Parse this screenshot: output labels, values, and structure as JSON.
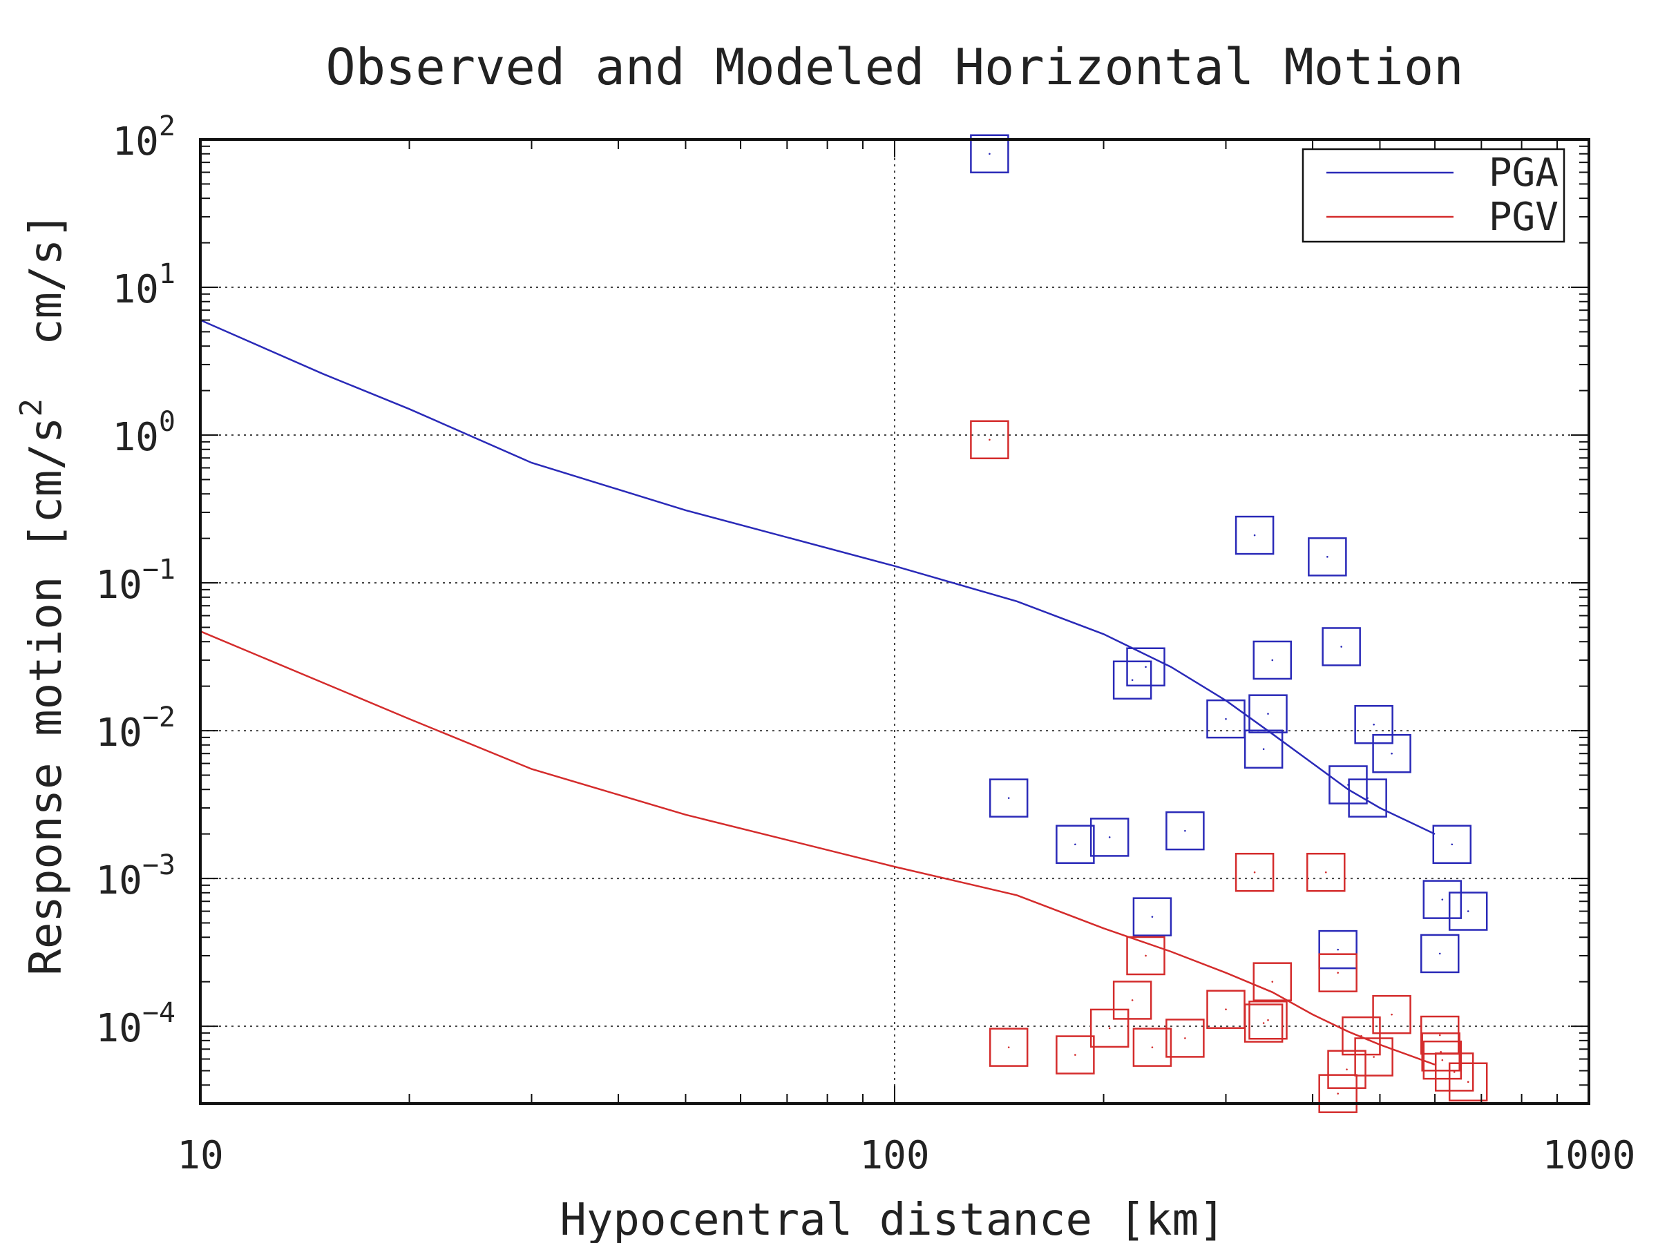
{
  "chart_data": {
    "type": "scatter",
    "title": "Observed and Modeled Horizontal Motion",
    "xlabel": "Hypocentral distance [km]",
    "ylabel": {
      "before": "Response motion [cm/s",
      "sup": "2",
      "after": "  cm/s]"
    },
    "x_scale": "log",
    "y_scale": "log",
    "xlim": [
      10,
      1000
    ],
    "ylim": [
      3e-05,
      100
    ],
    "x_ticks": [
      {
        "value": 10,
        "label": "10"
      },
      {
        "value": 100,
        "label": "100"
      },
      {
        "value": 1000,
        "label": "1000"
      }
    ],
    "y_ticks": [
      {
        "value": 100,
        "base": "10",
        "exp": "2"
      },
      {
        "value": 10,
        "base": "10",
        "exp": "1"
      },
      {
        "value": 1,
        "base": "10",
        "exp": "0"
      },
      {
        "value": 0.1,
        "base": "10",
        "exp": "−1"
      },
      {
        "value": 0.01,
        "base": "10",
        "exp": "−2"
      },
      {
        "value": 0.001,
        "base": "10",
        "exp": "−3"
      },
      {
        "value": 0.0001,
        "base": "10",
        "exp": "−4"
      }
    ],
    "grid": true,
    "legend_position": "top-right",
    "series": [
      {
        "name": "PGA",
        "color": "#2a2ab8",
        "model": [
          [
            10,
            6.0
          ],
          [
            15,
            2.6
          ],
          [
            20,
            1.5
          ],
          [
            30,
            0.65
          ],
          [
            50,
            0.31
          ],
          [
            100,
            0.13
          ],
          [
            150,
            0.075
          ],
          [
            200,
            0.045
          ],
          [
            250,
            0.027
          ],
          [
            300,
            0.016
          ],
          [
            350,
            0.0095
          ],
          [
            400,
            0.006
          ],
          [
            450,
            0.004
          ],
          [
            500,
            0.003
          ],
          [
            600,
            0.002
          ]
        ],
        "observed": [
          [
            137,
            80
          ],
          [
            330,
            0.21
          ],
          [
            420,
            0.15
          ],
          [
            440,
            0.037
          ],
          [
            230,
            0.027
          ],
          [
            220,
            0.022
          ],
          [
            350,
            0.03
          ],
          [
            300,
            0.012
          ],
          [
            345,
            0.013
          ],
          [
            490,
            0.011
          ],
          [
            340,
            0.0075
          ],
          [
            520,
            0.007
          ],
          [
            450,
            0.0043
          ],
          [
            480,
            0.0035
          ],
          [
            146,
            0.0035
          ],
          [
            182,
            0.0017
          ],
          [
            204,
            0.0019
          ],
          [
            262,
            0.0021
          ],
          [
            635,
            0.0017
          ],
          [
            235,
            0.00055
          ],
          [
            615,
            0.00072
          ],
          [
            670,
            0.0006
          ],
          [
            435,
            0.00033
          ],
          [
            610,
            0.00031
          ]
        ]
      },
      {
        "name": "PGV",
        "color": "#d42c2c",
        "model": [
          [
            10,
            0.047
          ],
          [
            20,
            0.012
          ],
          [
            30,
            0.0055
          ],
          [
            50,
            0.0027
          ],
          [
            100,
            0.0012
          ],
          [
            150,
            0.00077
          ],
          [
            200,
            0.00046
          ],
          [
            250,
            0.00032
          ],
          [
            300,
            0.00023
          ],
          [
            350,
            0.00017
          ],
          [
            400,
            0.00012
          ],
          [
            450,
            9.2e-05
          ],
          [
            500,
            7.5e-05
          ],
          [
            600,
            5.5e-05
          ]
        ],
        "observed": [
          [
            137,
            0.93
          ],
          [
            330,
            0.0011
          ],
          [
            418,
            0.0011
          ],
          [
            230,
            0.0003
          ],
          [
            350,
            0.0002
          ],
          [
            435,
            0.00023
          ],
          [
            220,
            0.00015
          ],
          [
            300,
            0.00013
          ],
          [
            345,
            0.00011
          ],
          [
            340,
            0.000105
          ],
          [
            520,
            0.00012
          ],
          [
            204,
            9.7e-05
          ],
          [
            470,
            8.6e-05
          ],
          [
            610,
            8.7e-05
          ],
          [
            146,
            7.2e-05
          ],
          [
            235,
            7.2e-05
          ],
          [
            262,
            8.3e-05
          ],
          [
            182,
            6.4e-05
          ],
          [
            490,
            6.2e-05
          ],
          [
            612,
            6.7e-05
          ],
          [
            615,
            5.9e-05
          ],
          [
            640,
            4.9e-05
          ],
          [
            448,
            5.1e-05
          ],
          [
            670,
            4.2e-05
          ],
          [
            435,
            3.5e-05
          ]
        ]
      }
    ]
  }
}
